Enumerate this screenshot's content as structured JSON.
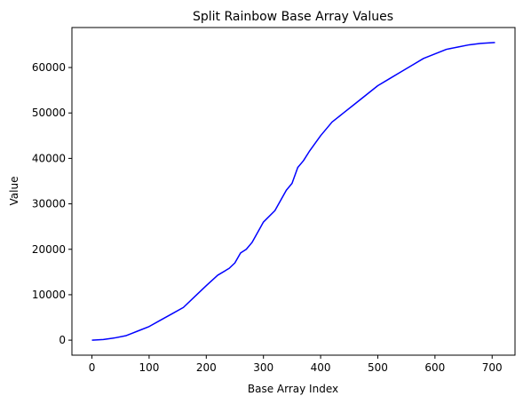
{
  "chart_data": {
    "type": "line",
    "title": "Split Rainbow Base Array Values",
    "xlabel": "Base Array Index",
    "ylabel": "Value",
    "xlim": [
      -35,
      740
    ],
    "ylim": [
      -3300,
      68800
    ],
    "x_ticks": [
      0,
      100,
      200,
      300,
      400,
      500,
      600,
      700
    ],
    "y_ticks": [
      0,
      10000,
      20000,
      30000,
      40000,
      50000,
      60000
    ],
    "grid": false,
    "legend": "none",
    "series": [
      {
        "color": "#0000ff",
        "x": [
          0,
          20,
          40,
          60,
          70,
          80,
          100,
          120,
          140,
          160,
          180,
          200,
          220,
          240,
          250,
          260,
          270,
          280,
          300,
          320,
          340,
          350,
          360,
          370,
          380,
          400,
          420,
          440,
          460,
          480,
          500,
          520,
          540,
          560,
          580,
          600,
          620,
          640,
          660,
          680,
          705
        ],
        "y": [
          0,
          150,
          500,
          1000,
          1500,
          2000,
          3000,
          4400,
          5800,
          7200,
          9600,
          12000,
          14300,
          15800,
          17000,
          19200,
          20000,
          21500,
          26000,
          28500,
          33000,
          34500,
          38000,
          39500,
          41500,
          45000,
          48000,
          50000,
          52000,
          54000,
          56000,
          57500,
          59000,
          60500,
          62000,
          63000,
          64000,
          64500,
          65000,
          65300,
          65500
        ]
      }
    ]
  }
}
